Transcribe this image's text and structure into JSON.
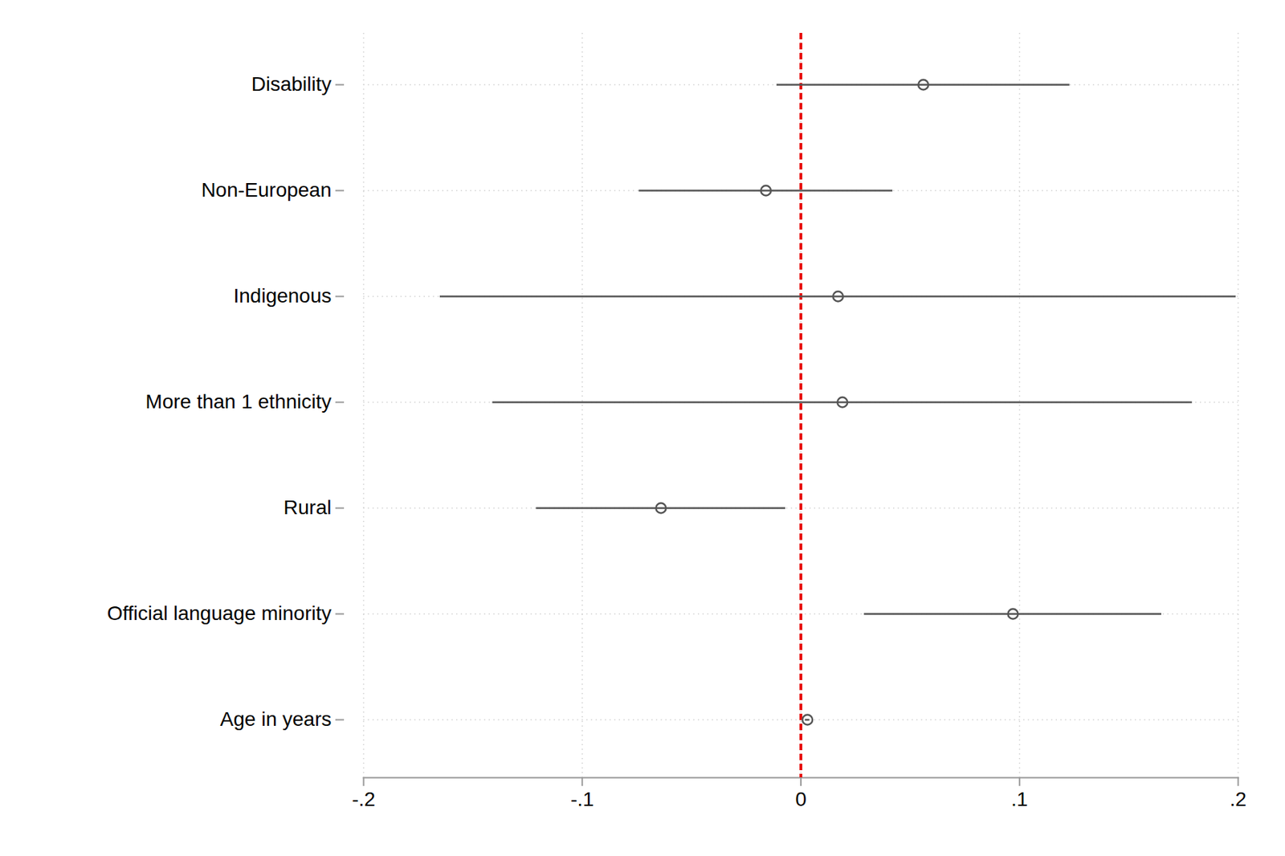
{
  "chart_data": {
    "type": "scatter",
    "orientation": "horizontal",
    "categories": [
      "Disability",
      "Non-European",
      "Indigenous",
      "More than 1 ethnicity",
      "Rural",
      "Official language minority",
      "Age in years"
    ],
    "values": [
      0.056,
      -0.016,
      0.017,
      0.019,
      -0.064,
      0.097,
      0.003
    ],
    "ci_lower": [
      -0.011,
      -0.074,
      -0.165,
      -0.141,
      -0.121,
      0.029,
      0.002
    ],
    "ci_upper": [
      0.123,
      0.042,
      0.199,
      0.179,
      -0.007,
      0.165,
      0.004
    ],
    "color": "#555555",
    "marker": "circle",
    "xlim": [
      -0.2,
      0.2
    ],
    "xticks": [
      {
        "value": -0.2,
        "label": "-.2"
      },
      {
        "value": -0.1,
        "label": "-.1"
      },
      0,
      {
        "value": 0.1,
        "label": ".1"
      },
      {
        "value": 0.2,
        "label": ".2"
      }
    ],
    "grid": true,
    "reference_line": {
      "value": 0,
      "color": "#e8110f",
      "line_style": "dashed"
    }
  }
}
